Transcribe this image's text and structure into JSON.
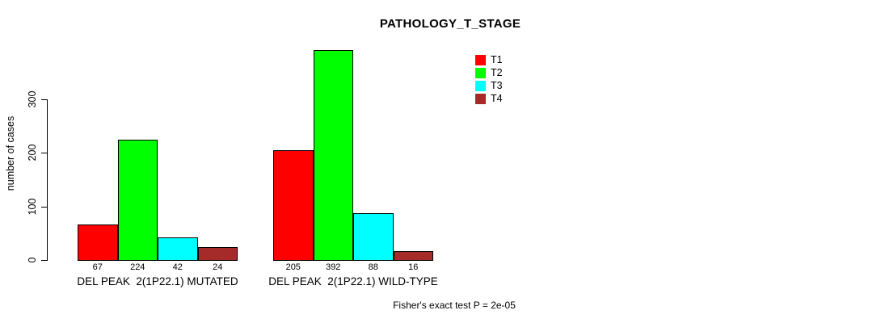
{
  "chart_data": {
    "type": "bar",
    "title": "PATHOLOGY_T_STAGE",
    "ylabel": "number of cases",
    "xlabel": "",
    "ylim": [
      0,
      400
    ],
    "yticks": [
      0,
      100,
      200,
      300
    ],
    "grid": false,
    "legend_position": "top-right",
    "categories": [
      "DEL PEAK  2(1P22.1) MUTATED",
      "DEL PEAK  2(1P22.1) WILD-TYPE"
    ],
    "series": [
      {
        "name": "T1",
        "color": "#ff0000",
        "values": [
          67,
          205
        ]
      },
      {
        "name": "T2",
        "color": "#00ff00",
        "values": [
          224,
          392
        ]
      },
      {
        "name": "T3",
        "color": "#00ffff",
        "values": [
          42,
          88
        ]
      },
      {
        "name": "T4",
        "color": "#a52a2a",
        "values": [
          24,
          16
        ]
      }
    ],
    "bar_value_labels": [
      [
        67,
        224,
        42,
        24
      ],
      [
        205,
        392,
        88,
        16
      ]
    ],
    "annotation": "Fisher's exact test P = 2e-05"
  }
}
